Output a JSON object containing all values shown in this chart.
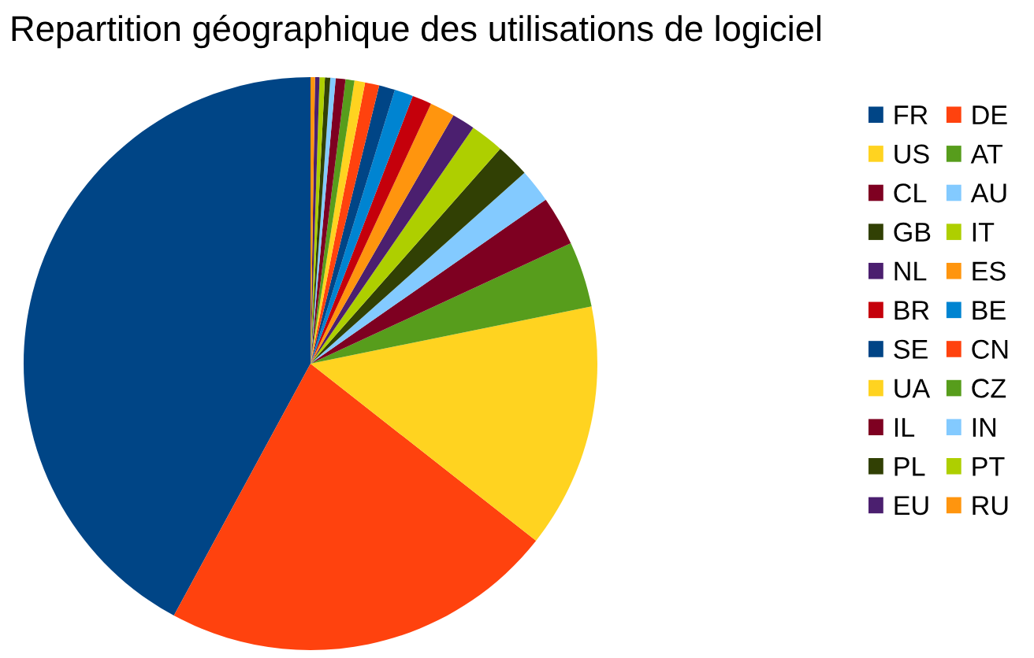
{
  "chart_data": {
    "type": "pie",
    "title": "Repartition géographique des utilisations de logiciel",
    "categories": [
      "FR",
      "DE",
      "US",
      "AT",
      "CL",
      "AU",
      "GB",
      "IT",
      "NL",
      "ES",
      "BR",
      "BE",
      "SE",
      "CN",
      "UA",
      "CZ",
      "IL",
      "IN",
      "PL",
      "PT",
      "EU",
      "RU"
    ],
    "values": [
      42.1,
      22.3,
      13.8,
      3.7,
      2.8,
      1.9,
      1.9,
      1.9,
      1.3,
      1.4,
      1.1,
      1.05,
      0.9,
      0.8,
      0.6,
      0.5,
      0.55,
      0.3,
      0.3,
      0.3,
      0.25,
      0.25
    ],
    "colors": [
      "#004586",
      "#ff420e",
      "#ffd320",
      "#579d1c",
      "#7e0021",
      "#83caff",
      "#314004",
      "#aecf00",
      "#4b1f6f",
      "#ff950e",
      "#c5000b",
      "#0084d1",
      "#004586",
      "#ff420e",
      "#ffd320",
      "#579d1c",
      "#7e0021",
      "#83caff",
      "#314004",
      "#aecf00",
      "#4b1f6f",
      "#ff950e"
    ],
    "legend": "right"
  }
}
